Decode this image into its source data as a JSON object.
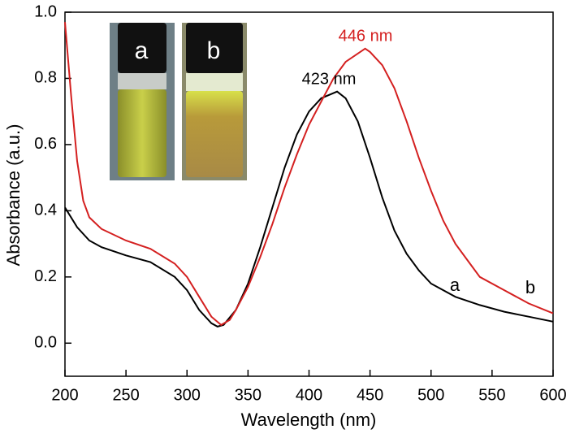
{
  "chart_data": {
    "type": "line",
    "xlabel": "Wavelength (nm)",
    "ylabel": "Absorbance (a.u.)",
    "xlim": [
      200,
      600
    ],
    "ylim": [
      -0.1,
      1.0
    ],
    "xticks": [
      200,
      250,
      300,
      350,
      400,
      450,
      500,
      550,
      600
    ],
    "yticks": [
      {
        "value": 0,
        "label": "0.0"
      },
      0.2,
      0.4,
      0.6,
      0.8,
      {
        "value": 1,
        "label": "1.0"
      }
    ],
    "series": [
      {
        "name": "a",
        "color": "#000000",
        "x": [
          200,
          210,
          220,
          230,
          250,
          270,
          290,
          300,
          310,
          320,
          325,
          330,
          340,
          350,
          360,
          370,
          380,
          390,
          400,
          410,
          423,
          430,
          440,
          450,
          460,
          470,
          480,
          490,
          500,
          520,
          540,
          560,
          580,
          600
        ],
        "values": [
          0.41,
          0.35,
          0.31,
          0.29,
          0.265,
          0.245,
          0.2,
          0.16,
          0.1,
          0.06,
          0.05,
          0.055,
          0.1,
          0.18,
          0.29,
          0.41,
          0.53,
          0.63,
          0.7,
          0.74,
          0.76,
          0.74,
          0.67,
          0.56,
          0.44,
          0.34,
          0.27,
          0.22,
          0.18,
          0.14,
          0.115,
          0.095,
          0.08,
          0.065
        ]
      },
      {
        "name": "b",
        "color": "#d42020",
        "x": [
          200,
          205,
          210,
          215,
          220,
          230,
          250,
          270,
          290,
          300,
          310,
          320,
          328,
          335,
          340,
          350,
          360,
          370,
          380,
          390,
          400,
          410,
          420,
          430,
          446,
          450,
          460,
          470,
          480,
          490,
          500,
          510,
          520,
          530,
          540,
          560,
          580,
          600
        ],
        "values": [
          0.97,
          0.75,
          0.55,
          0.43,
          0.38,
          0.345,
          0.31,
          0.285,
          0.24,
          0.2,
          0.14,
          0.08,
          0.055,
          0.07,
          0.1,
          0.17,
          0.26,
          0.36,
          0.47,
          0.57,
          0.66,
          0.73,
          0.8,
          0.85,
          0.89,
          0.88,
          0.84,
          0.77,
          0.67,
          0.56,
          0.46,
          0.37,
          0.3,
          0.25,
          0.2,
          0.16,
          0.12,
          0.09
        ]
      }
    ],
    "annotations": [
      {
        "text": "446 nm",
        "color": "#d42020"
      },
      {
        "text": "423 nm",
        "color": "#000000"
      }
    ],
    "inset_labels": [
      "a",
      "b"
    ]
  }
}
